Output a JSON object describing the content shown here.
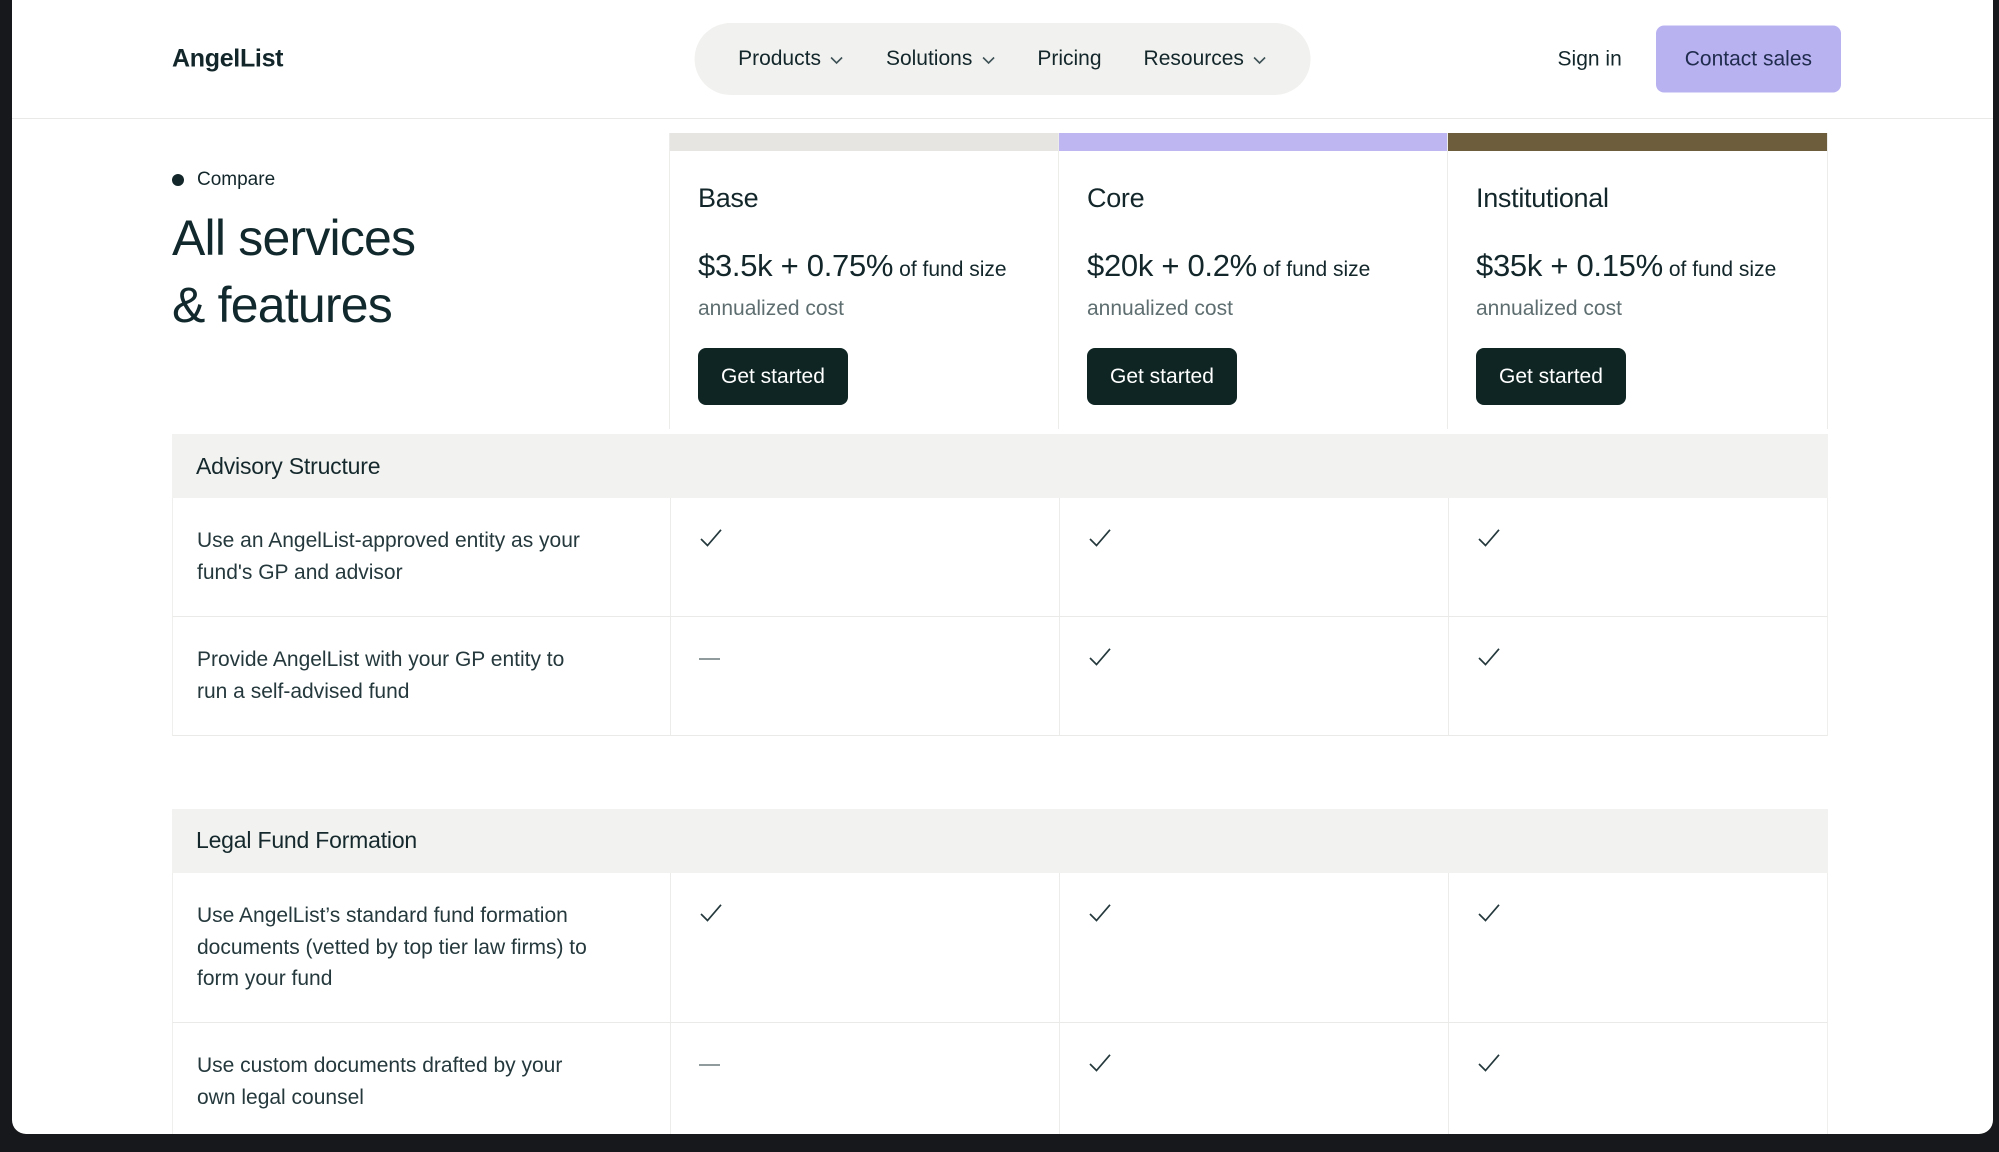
{
  "header": {
    "logo": "AngelList",
    "nav_items": [
      {
        "label": "Products",
        "chevron": true
      },
      {
        "label": "Solutions",
        "chevron": true
      },
      {
        "label": "Pricing",
        "chevron": false
      },
      {
        "label": "Resources",
        "chevron": true
      }
    ],
    "sign_in_label": "Sign in",
    "contact_sales_label": "Contact sales"
  },
  "hero": {
    "eyebrow": "Compare",
    "title": "All services & features"
  },
  "plans": [
    {
      "name": "Base",
      "bar_color": "#e6e5e2",
      "price": "$3.5k + 0.75%",
      "price_suffix": "of fund size",
      "price_note": "annualized cost",
      "cta_label": "Get started"
    },
    {
      "name": "Core",
      "bar_color": "#bdb6f0",
      "price": "$20k + 0.2%",
      "price_suffix": "of fund size",
      "price_note": "annualized cost",
      "cta_label": "Get started"
    },
    {
      "name": "Institutional",
      "bar_color": "#6e5d3d",
      "price": "$35k + 0.15%",
      "price_suffix": "of fund size",
      "price_note": "annualized cost",
      "cta_label": "Get started"
    }
  ],
  "sections": [
    {
      "title": "Advisory Structure",
      "rows": [
        {
          "feature": "Use an AngelList-approved entity as your fund's GP and advisor",
          "availability": [
            "check",
            "check",
            "check"
          ]
        },
        {
          "feature": "Provide AngelList with your GP entity to run a self-advised fund",
          "availability": [
            "dash",
            "check",
            "check"
          ]
        }
      ]
    },
    {
      "title": "Legal Fund Formation",
      "rows": [
        {
          "feature": "Use AngelList’s standard fund formation documents (vetted by top tier law firms) to form your fund",
          "availability": [
            "check",
            "check",
            "check"
          ]
        },
        {
          "feature": "Use custom documents drafted by your own legal counsel",
          "availability": [
            "dash",
            "check",
            "check"
          ]
        }
      ]
    }
  ],
  "colors": {
    "accent_lavender": "#b9b2f1",
    "core_bar": "#bdb6f0",
    "institutional_bar": "#6e5d3d",
    "base_bar": "#e6e5e2",
    "cta_dark": "#0e2523",
    "text_dark": "#13272b",
    "text_gray": "#5e6e70",
    "band_bg": "#f2f2f0",
    "border": "#e9e9e7",
    "frame": "#17181b"
  }
}
